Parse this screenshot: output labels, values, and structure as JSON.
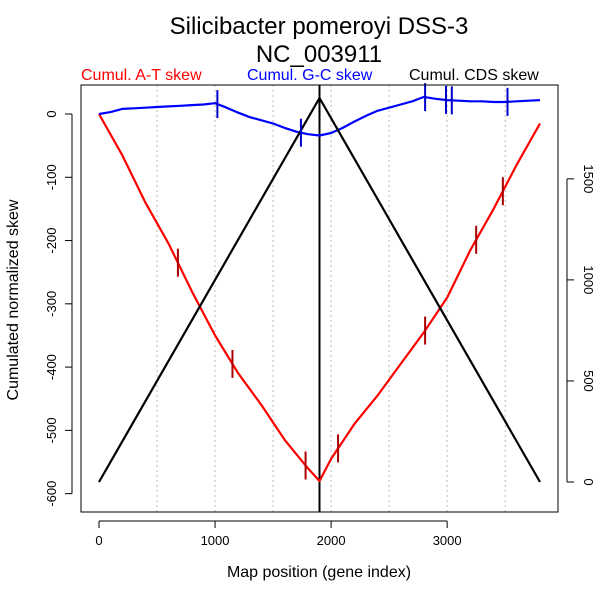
{
  "chart_data": {
    "type": "line",
    "title": "Silicibacter pomeroyi DSS-3",
    "subtitle": "NC_003911",
    "xlabel": "Map position (gene index)",
    "ylabel": "Cumulated normalized skew",
    "xlim": [
      0,
      3800
    ],
    "ylim_left": [
      -580,
      25
    ],
    "ylim_right": [
      0,
      1900
    ],
    "x_ticks": [
      0,
      1000,
      2000,
      3000
    ],
    "y_ticks_left": [
      0,
      -100,
      -200,
      -300,
      -400,
      -500,
      -600
    ],
    "y_ticks_right": [
      0,
      500,
      1000,
      1500
    ],
    "vertical_gridlines": [
      500,
      1000,
      1500,
      2000,
      2500,
      3000,
      3500
    ],
    "origin_line_x": 1900,
    "legend": [
      {
        "label": "Cumul. A-T skew",
        "color": "#ff0000"
      },
      {
        "label": "Cumul. G-C skew",
        "color": "#0000ff"
      },
      {
        "label": "Cumul. CDS skew",
        "color": "#000000"
      }
    ],
    "series": [
      {
        "name": "Cumul. A-T skew",
        "axis": "left",
        "color": "#ff0000",
        "x": [
          0,
          200,
          400,
          600,
          800,
          1000,
          1200,
          1400,
          1600,
          1800,
          1900,
          2000,
          2200,
          2400,
          2600,
          2800,
          3000,
          3200,
          3400,
          3600,
          3800
        ],
        "y": [
          0,
          -65,
          -140,
          -205,
          -280,
          -350,
          -410,
          -460,
          -515,
          -560,
          -580,
          -545,
          -490,
          -445,
          -395,
          -345,
          -290,
          -215,
          -150,
          -80,
          -15
        ]
      },
      {
        "name": "Cumul. G-C skew",
        "axis": "left",
        "color": "#0000ff",
        "x": [
          0,
          100,
          200,
          300,
          400,
          500,
          600,
          700,
          800,
          900,
          1000,
          1100,
          1200,
          1300,
          1400,
          1500,
          1600,
          1700,
          1800,
          1900,
          2000,
          2100,
          2200,
          2300,
          2400,
          2500,
          2600,
          2700,
          2800,
          2900,
          3000,
          3100,
          3200,
          3300,
          3400,
          3500,
          3600,
          3700,
          3800
        ],
        "y": [
          0,
          3,
          8,
          9,
          10,
          11,
          12,
          13,
          14,
          15,
          17,
          10,
          2,
          -5,
          -10,
          -15,
          -22,
          -28,
          -32,
          -34,
          -30,
          -22,
          -12,
          -3,
          5,
          10,
          15,
          20,
          27,
          24,
          22,
          21,
          20,
          20,
          19,
          19,
          20,
          21,
          22
        ]
      },
      {
        "name": "Cumul. CDS skew",
        "axis": "right",
        "color": "#000000",
        "x": [
          0,
          1900,
          3800
        ],
        "y": [
          0,
          1900,
          0
        ]
      }
    ],
    "markers": [
      {
        "series": "Cumul. A-T skew",
        "x": [
          680,
          1150,
          1780,
          2060,
          2810,
          3250,
          3480
        ]
      },
      {
        "series": "Cumul. G-C skew",
        "x": [
          1020,
          1740,
          2810,
          2990,
          3040,
          3520
        ]
      }
    ]
  }
}
